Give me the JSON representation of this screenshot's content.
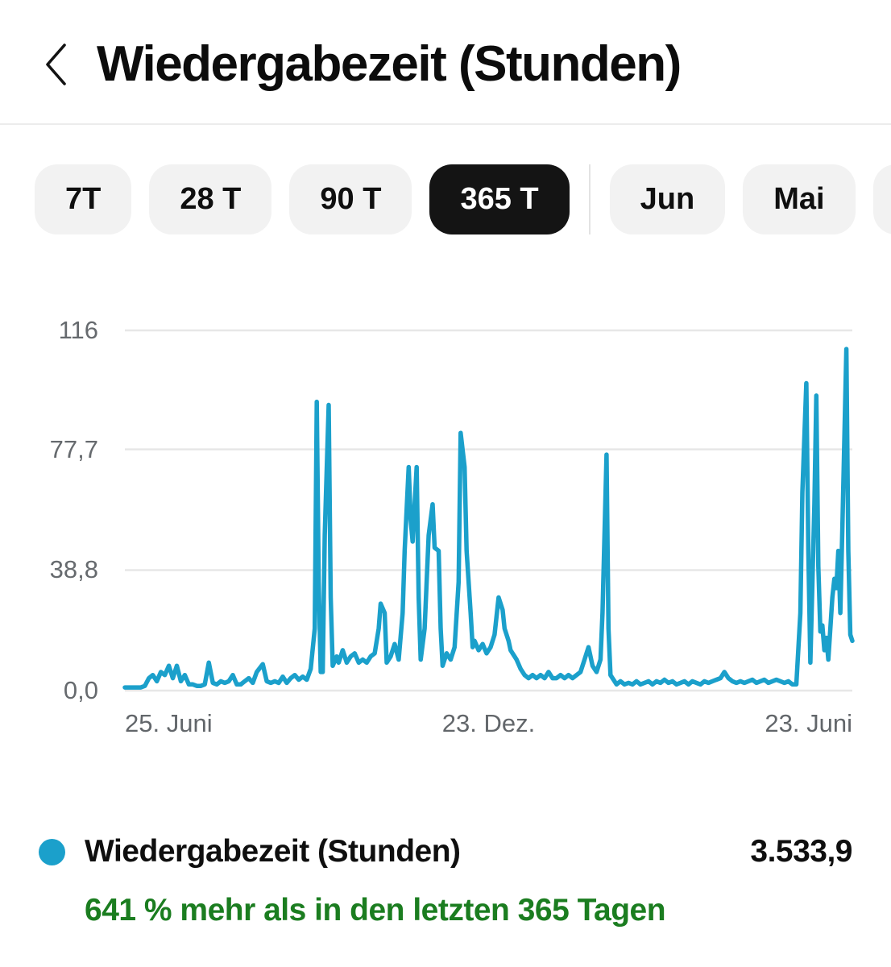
{
  "header": {
    "title": "Wiedergabezeit (Stunden)"
  },
  "filters": {
    "ranges": [
      {
        "label": "7T",
        "selected": false
      },
      {
        "label": "28 T",
        "selected": false
      },
      {
        "label": "90 T",
        "selected": false
      },
      {
        "label": "365 T",
        "selected": true
      }
    ],
    "months": [
      {
        "label": "Jun",
        "selected": false
      },
      {
        "label": "Mai",
        "selected": false
      }
    ]
  },
  "chart_data": {
    "type": "line",
    "title": "Wiedergabezeit (Stunden)",
    "series_name": "Wiedergabezeit (Stunden)",
    "line_color": "#1ba0cb",
    "grid_color": "#e7e7e7",
    "ylim": [
      0,
      116
    ],
    "x_range_days": 364,
    "yticks": [
      {
        "label": "116",
        "value": 116
      },
      {
        "label": "77,7",
        "value": 77.7
      },
      {
        "label": "38,8",
        "value": 38.8
      },
      {
        "label": "0,0",
        "value": 0
      }
    ],
    "xticks": [
      {
        "label": "25. Juni",
        "align": "left"
      },
      {
        "label": "23. Dez.",
        "align": "center"
      },
      {
        "label": "23. Juni",
        "align": "right"
      }
    ],
    "points": [
      [
        0,
        1
      ],
      [
        2,
        1
      ],
      [
        4,
        1
      ],
      [
        6,
        1
      ],
      [
        8,
        1
      ],
      [
        10,
        1.5
      ],
      [
        12,
        4
      ],
      [
        14,
        5
      ],
      [
        16,
        3
      ],
      [
        18,
        6
      ],
      [
        20,
        5
      ],
      [
        22,
        8
      ],
      [
        24,
        4
      ],
      [
        26,
        8
      ],
      [
        28,
        3
      ],
      [
        30,
        5
      ],
      [
        32,
        2
      ],
      [
        34,
        2
      ],
      [
        36,
        1.5
      ],
      [
        38,
        1.5
      ],
      [
        40,
        2
      ],
      [
        42,
        9
      ],
      [
        44,
        2.5
      ],
      [
        46,
        2
      ],
      [
        48,
        3
      ],
      [
        50,
        2.5
      ],
      [
        52,
        3
      ],
      [
        54,
        5
      ],
      [
        56,
        2
      ],
      [
        58,
        2
      ],
      [
        60,
        3
      ],
      [
        62,
        4
      ],
      [
        64,
        2.5
      ],
      [
        66,
        6
      ],
      [
        69,
        8.5
      ],
      [
        71,
        3
      ],
      [
        73,
        2.5
      ],
      [
        75,
        3
      ],
      [
        77,
        2.5
      ],
      [
        79,
        4.5
      ],
      [
        81,
        2.5
      ],
      [
        83,
        4
      ],
      [
        85,
        5
      ],
      [
        87,
        3.5
      ],
      [
        89,
        4.5
      ],
      [
        91,
        3.5
      ],
      [
        93,
        7
      ],
      [
        95,
        20
      ],
      [
        96,
        93
      ],
      [
        97,
        35
      ],
      [
        98,
        6
      ],
      [
        99,
        6
      ],
      [
        100,
        50
      ],
      [
        102,
        92
      ],
      [
        103,
        30
      ],
      [
        104,
        8
      ],
      [
        106,
        11
      ],
      [
        107,
        9
      ],
      [
        109,
        13
      ],
      [
        111,
        9
      ],
      [
        113,
        11
      ],
      [
        115,
        12
      ],
      [
        117,
        9
      ],
      [
        119,
        10
      ],
      [
        121,
        9
      ],
      [
        123,
        11
      ],
      [
        125,
        12
      ],
      [
        127,
        20
      ],
      [
        128,
        28
      ],
      [
        130,
        25
      ],
      [
        131,
        9
      ],
      [
        133,
        11
      ],
      [
        135,
        15
      ],
      [
        137,
        10
      ],
      [
        139,
        25
      ],
      [
        140,
        45
      ],
      [
        142,
        72
      ],
      [
        143,
        55
      ],
      [
        144,
        48
      ],
      [
        146,
        72
      ],
      [
        147,
        30
      ],
      [
        148,
        10
      ],
      [
        150,
        20
      ],
      [
        151,
        35
      ],
      [
        152,
        50
      ],
      [
        154,
        60
      ],
      [
        155,
        46
      ],
      [
        157,
        45
      ],
      [
        158,
        20
      ],
      [
        159,
        8
      ],
      [
        161,
        12
      ],
      [
        163,
        10
      ],
      [
        165,
        14
      ],
      [
        167,
        35
      ],
      [
        168,
        83
      ],
      [
        170,
        72
      ],
      [
        171,
        45
      ],
      [
        173,
        25
      ],
      [
        174,
        14
      ],
      [
        175,
        16
      ],
      [
        177,
        13
      ],
      [
        179,
        15
      ],
      [
        181,
        12
      ],
      [
        183,
        14
      ],
      [
        185,
        18
      ],
      [
        187,
        30
      ],
      [
        189,
        26
      ],
      [
        190,
        20
      ],
      [
        192,
        16
      ],
      [
        193,
        13
      ],
      [
        196,
        10
      ],
      [
        198,
        7
      ],
      [
        200,
        5
      ],
      [
        202,
        4
      ],
      [
        204,
        5
      ],
      [
        206,
        4
      ],
      [
        208,
        5
      ],
      [
        210,
        4
      ],
      [
        212,
        6
      ],
      [
        214,
        4
      ],
      [
        216,
        4
      ],
      [
        218,
        5
      ],
      [
        220,
        4
      ],
      [
        222,
        5
      ],
      [
        224,
        4
      ],
      [
        226,
        5
      ],
      [
        228,
        6
      ],
      [
        230,
        10
      ],
      [
        232,
        14
      ],
      [
        234,
        8
      ],
      [
        236,
        6
      ],
      [
        238,
        10
      ],
      [
        239,
        25
      ],
      [
        241,
        76
      ],
      [
        242,
        20
      ],
      [
        243,
        5
      ],
      [
        245,
        3
      ],
      [
        246,
        2
      ],
      [
        248,
        3
      ],
      [
        250,
        2
      ],
      [
        252,
        2.5
      ],
      [
        254,
        2
      ],
      [
        256,
        3
      ],
      [
        258,
        2
      ],
      [
        260,
        2.5
      ],
      [
        262,
        3
      ],
      [
        264,
        2
      ],
      [
        266,
        3
      ],
      [
        268,
        2.5
      ],
      [
        270,
        3.5
      ],
      [
        272,
        2.5
      ],
      [
        274,
        3
      ],
      [
        276,
        2
      ],
      [
        278,
        2.5
      ],
      [
        280,
        3
      ],
      [
        282,
        2
      ],
      [
        284,
        3
      ],
      [
        286,
        2.5
      ],
      [
        288,
        2
      ],
      [
        290,
        3
      ],
      [
        292,
        2.5
      ],
      [
        294,
        3
      ],
      [
        296,
        3.5
      ],
      [
        298,
        4
      ],
      [
        300,
        6
      ],
      [
        302,
        4
      ],
      [
        304,
        3
      ],
      [
        306,
        2.5
      ],
      [
        308,
        3
      ],
      [
        310,
        2.5
      ],
      [
        312,
        3
      ],
      [
        314,
        3.5
      ],
      [
        316,
        2.5
      ],
      [
        318,
        3
      ],
      [
        320,
        3.5
      ],
      [
        322,
        2.5
      ],
      [
        324,
        3
      ],
      [
        326,
        3.5
      ],
      [
        328,
        3
      ],
      [
        330,
        2.5
      ],
      [
        332,
        3
      ],
      [
        334,
        2
      ],
      [
        336,
        2
      ],
      [
        338,
        25
      ],
      [
        339,
        64
      ],
      [
        341,
        99
      ],
      [
        342,
        45
      ],
      [
        343,
        9
      ],
      [
        345,
        60
      ],
      [
        346,
        95
      ],
      [
        347,
        40
      ],
      [
        348,
        19
      ],
      [
        349,
        21
      ],
      [
        350,
        13
      ],
      [
        351,
        17
      ],
      [
        352,
        10
      ],
      [
        354,
        30
      ],
      [
        355,
        36
      ],
      [
        356,
        33
      ],
      [
        357,
        45
      ],
      [
        358,
        25
      ],
      [
        359,
        52
      ],
      [
        361,
        110
      ],
      [
        362,
        45
      ],
      [
        363,
        18
      ],
      [
        364,
        16
      ]
    ]
  },
  "legend": {
    "series_label": "Wiedergabezeit (Stunden)",
    "total_value": "3.533,9",
    "delta_text": "641 % mehr als in den letzten 365 Tagen",
    "delta_color": "#1b7d20",
    "dot_color": "#1ba0cb"
  }
}
